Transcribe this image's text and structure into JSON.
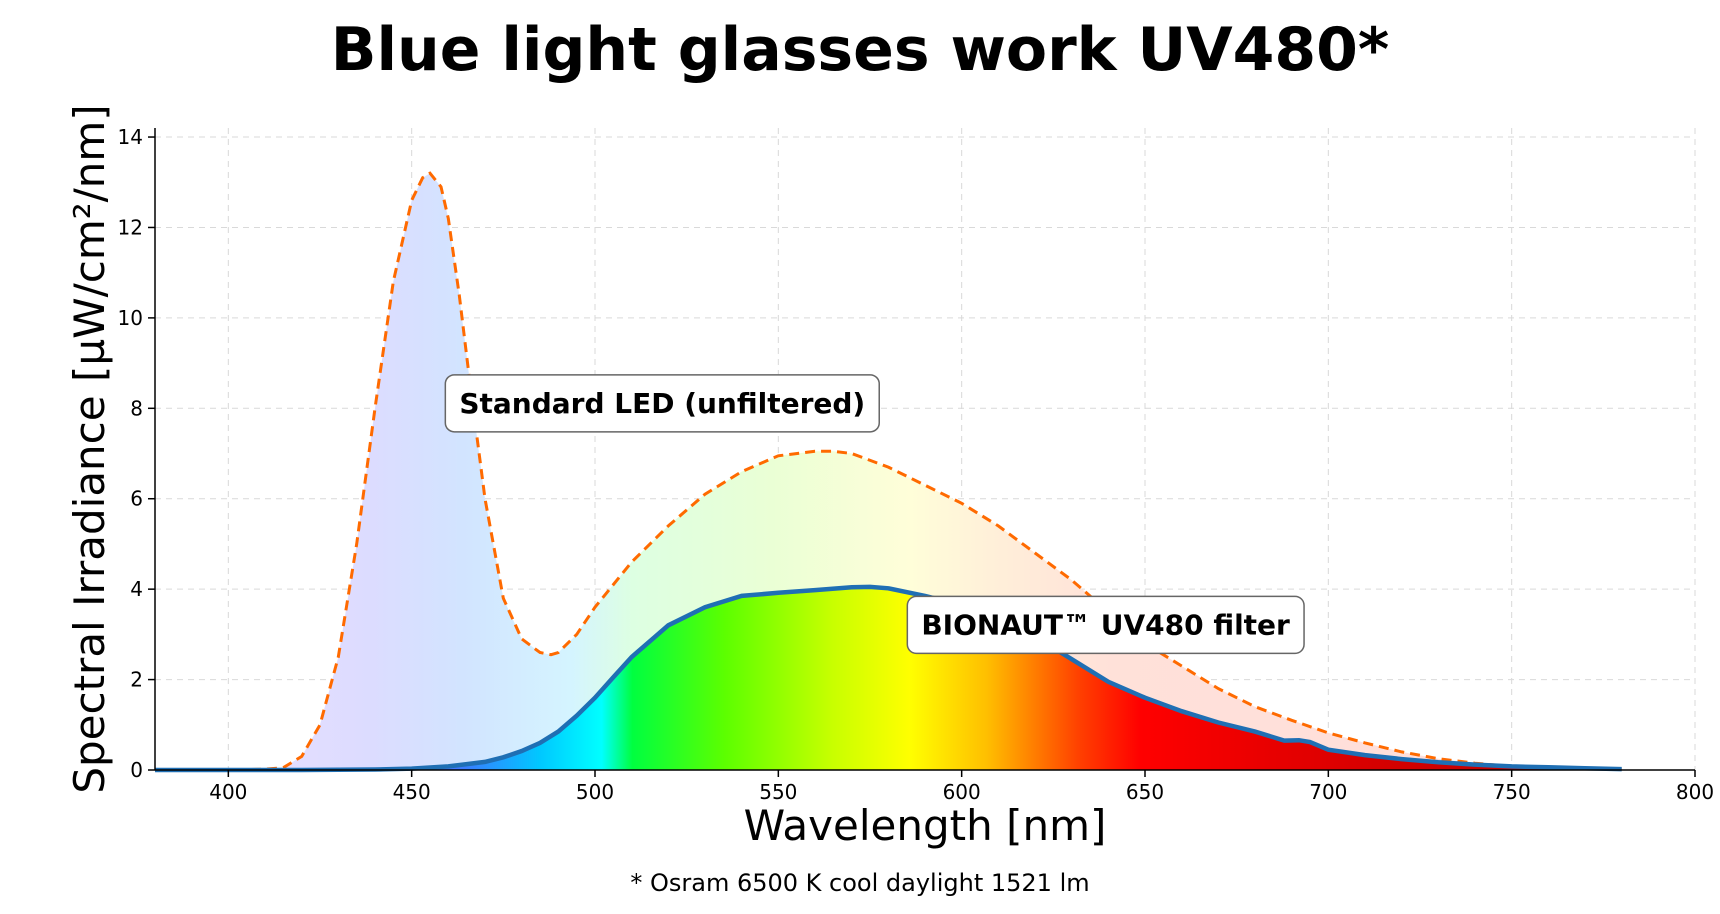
{
  "chart_data": {
    "type": "area",
    "title": "Blue light glasses work UV480*",
    "xlabel": "Wavelength [nm]",
    "ylabel": "Spectral Irradiance [µW/cm²/nm]",
    "footnote": "* Osram 6500 K cool daylight 1521 lm",
    "xlim": [
      380,
      800
    ],
    "ylim": [
      0,
      14.2
    ],
    "x_ticks": [
      400,
      450,
      500,
      550,
      600,
      650,
      700,
      750,
      800
    ],
    "y_ticks": [
      0,
      2,
      4,
      6,
      8,
      10,
      12,
      14
    ],
    "grid": true,
    "series": [
      {
        "label": "Standard LED (unfiltered)",
        "style": "dashed",
        "color": "#ff6a00",
        "x": [
          380,
          400,
          410,
          415,
          420,
          425,
          430,
          435,
          440,
          445,
          450,
          453,
          455,
          458,
          460,
          463,
          466,
          470,
          475,
          480,
          485,
          488,
          490,
          495,
          500,
          510,
          520,
          530,
          540,
          550,
          560,
          565,
          570,
          580,
          590,
          600,
          610,
          620,
          630,
          640,
          650,
          660,
          670,
          680,
          690,
          700,
          710,
          720,
          730,
          740,
          750,
          760,
          770,
          780
        ],
        "y": [
          0,
          0,
          0.02,
          0.05,
          0.3,
          1.0,
          2.5,
          5.0,
          8.0,
          10.8,
          12.6,
          13.1,
          13.2,
          12.9,
          12.2,
          10.5,
          8.5,
          6.0,
          3.8,
          2.9,
          2.6,
          2.55,
          2.6,
          3.0,
          3.6,
          4.6,
          5.4,
          6.1,
          6.6,
          6.95,
          7.05,
          7.05,
          7.0,
          6.7,
          6.3,
          5.9,
          5.4,
          4.8,
          4.2,
          3.5,
          2.8,
          2.3,
          1.8,
          1.4,
          1.1,
          0.82,
          0.6,
          0.4,
          0.25,
          0.15,
          0.08,
          0.05,
          0.03,
          0.02
        ]
      },
      {
        "label": "BIONAUT™ UV480 filter",
        "style": "solid",
        "color": "#1f6fb4",
        "x": [
          380,
          400,
          420,
          440,
          450,
          460,
          470,
          475,
          480,
          485,
          490,
          495,
          500,
          505,
          510,
          520,
          530,
          540,
          550,
          560,
          570,
          575,
          580,
          590,
          600,
          610,
          620,
          630,
          640,
          650,
          660,
          670,
          680,
          688,
          692,
          695,
          700,
          710,
          720,
          730,
          740,
          750,
          760,
          770,
          780
        ],
        "y": [
          0,
          0,
          0,
          0.01,
          0.03,
          0.08,
          0.18,
          0.28,
          0.42,
          0.6,
          0.85,
          1.2,
          1.6,
          2.05,
          2.5,
          3.2,
          3.6,
          3.85,
          3.92,
          3.98,
          4.04,
          4.05,
          4.02,
          3.85,
          3.65,
          3.35,
          2.95,
          2.45,
          1.95,
          1.6,
          1.3,
          1.05,
          0.85,
          0.65,
          0.66,
          0.62,
          0.45,
          0.33,
          0.24,
          0.17,
          0.12,
          0.08,
          0.06,
          0.04,
          0.02
        ]
      }
    ],
    "annotations": [
      {
        "text": "Standard LED (unfiltered)",
        "x": 463,
        "y": 7.9
      },
      {
        "text": "BIONAUT™ UV480 filter",
        "x": 589,
        "y": 3.0
      }
    ]
  }
}
